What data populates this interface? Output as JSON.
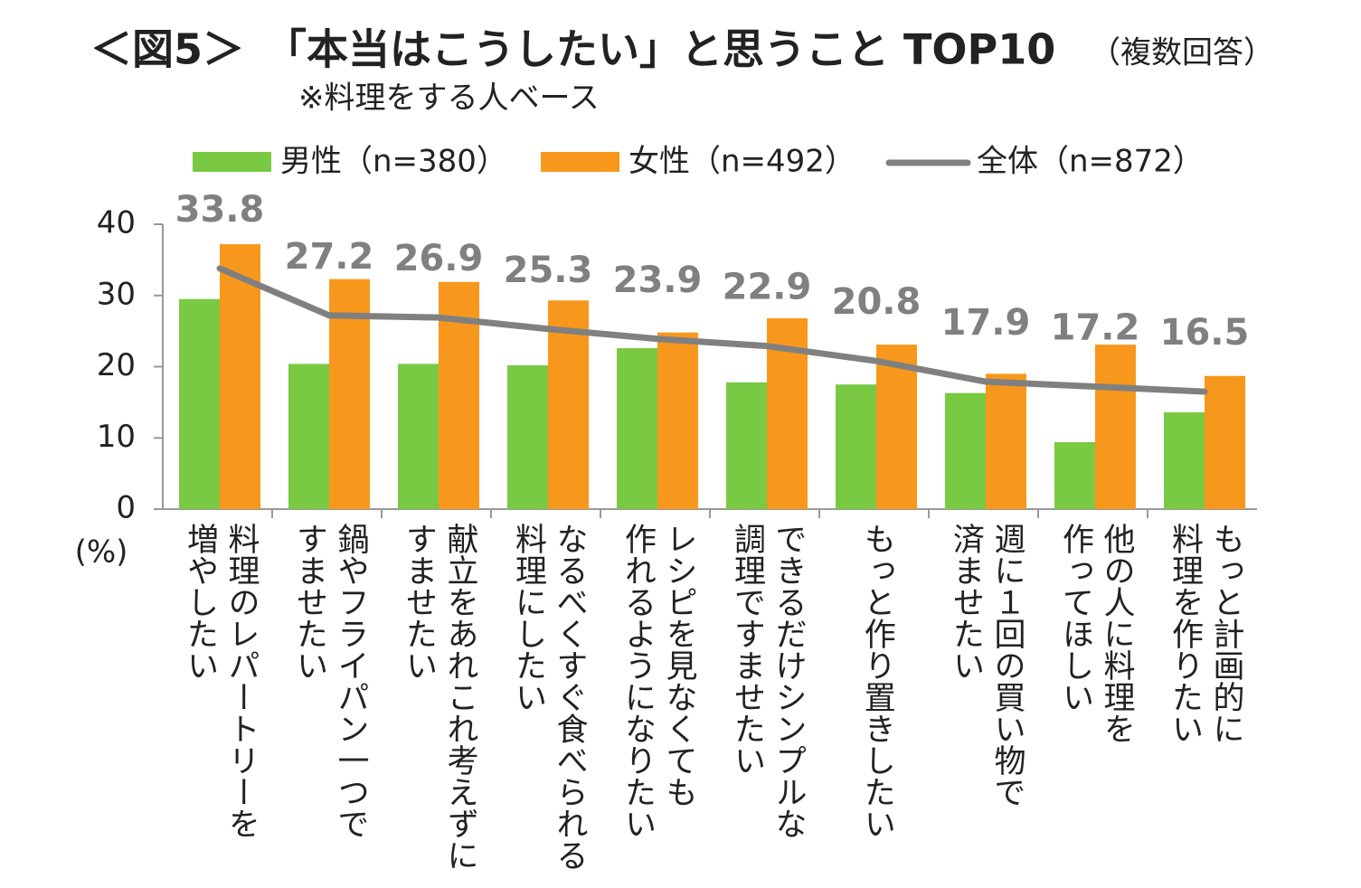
{
  "chart_data": {
    "type": "bar_line",
    "title": "＜図5＞　「本当はこうしたい」と思うこと TOP10",
    "title_note": "（複数回答）",
    "subtitle": "※料理をする人ベース",
    "y_unit": "(%)",
    "categories": [
      "料理のレパートリーを\n増やしたい",
      "鍋やフライパン一つで\nすませたい",
      "献立をあれこれ考えずに\nすませたい",
      "なるべくすぐ食べられる\n料理にしたい",
      "レシピを見なくても\n作れるようになりたい",
      "できるだけシンプルな\n調理ですませたい",
      "もっと作り置きしたい",
      "週に１回の買い物で\n済ませたい",
      "他の人に料理を\n作ってほしい",
      "もっと計画的に\n料理を作りたい"
    ],
    "series": [
      {
        "name": "男性（n=380）",
        "color": "#7ac943",
        "kind": "bar",
        "values": [
          29.5,
          20.4,
          20.4,
          20.2,
          22.6,
          17.8,
          17.5,
          16.3,
          9.4,
          13.6
        ]
      },
      {
        "name": "女性（n=492）",
        "color": "#f7981d",
        "kind": "bar",
        "values": [
          37.2,
          32.3,
          31.9,
          29.3,
          24.8,
          26.8,
          23.1,
          19.0,
          23.1,
          18.7
        ]
      },
      {
        "name": "全体（n=872）",
        "color": "#808080",
        "kind": "line",
        "values": [
          33.8,
          27.2,
          26.9,
          25.3,
          23.9,
          22.9,
          20.8,
          17.9,
          17.2,
          16.5
        ]
      }
    ],
    "ylim": [
      0,
      40
    ],
    "yticks": [
      0,
      10,
      20,
      30,
      40
    ]
  }
}
